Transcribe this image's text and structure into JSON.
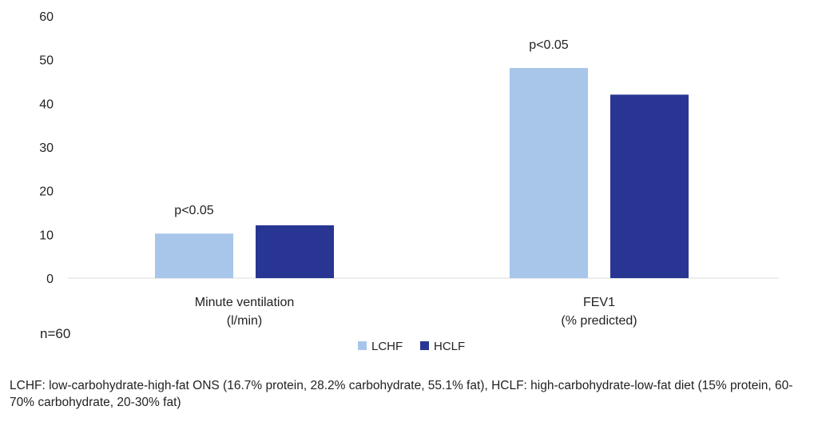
{
  "chart_data": {
    "type": "bar",
    "categories": [
      [
        "Minute ventilation",
        "(l/min)"
      ],
      [
        "FEV1",
        "(% predicted)"
      ]
    ],
    "series": [
      {
        "name": "LCHF",
        "color": "#a7c6ea",
        "values": [
          10.2,
          48.1
        ]
      },
      {
        "name": "HCLF",
        "color": "#283593",
        "values": [
          12.1,
          42.0
        ]
      }
    ],
    "ylim": [
      0,
      60
    ],
    "yticks": [
      0,
      10,
      20,
      30,
      40,
      50,
      60
    ],
    "annotations": [
      {
        "category_index": 0,
        "text": "p<0.05"
      },
      {
        "category_index": 1,
        "text": "p<0.05"
      }
    ],
    "legend_position": "bottom-center",
    "grid": false
  },
  "note": "n=60",
  "footnote": "LCHF: low-carbohydrate-high-fat ONS (16.7% protein, 28.2% carbohydrate, 55.1% fat), HCLF: high-carbohydrate-low-fat diet (15% protein, 60-70% carbohydrate, 20-30% fat)"
}
